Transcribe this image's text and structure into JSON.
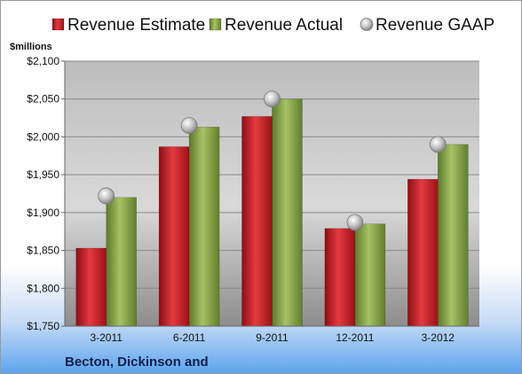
{
  "chart_data": {
    "type": "bar",
    "unit_label": "$millions",
    "company": "Becton, Dickinson and",
    "categories": [
      "3-2011",
      "6-2011",
      "9-2011",
      "12-2011",
      "3-2012"
    ],
    "y_ticks": [
      "$1,750",
      "$1,800",
      "$1,850",
      "$1,900",
      "$1,950",
      "$2,000",
      "$2,050",
      "$2,100"
    ],
    "ylim": [
      1750,
      2100
    ],
    "grid": true,
    "legend_position": "top",
    "series": [
      {
        "name": "Revenue Estimate",
        "kind": "bar",
        "color": "#d4202a",
        "values": [
          1853,
          1987,
          2027,
          1879,
          1944
        ]
      },
      {
        "name": "Revenue Actual",
        "kind": "bar",
        "color": "#8caa4a",
        "values": [
          1920,
          2013,
          2050,
          1885,
          1990
        ]
      },
      {
        "name": "Revenue GAAP",
        "kind": "marker",
        "color": "#b8b8b8",
        "values": [
          1922,
          2015,
          2050,
          1887,
          1990
        ]
      }
    ]
  }
}
